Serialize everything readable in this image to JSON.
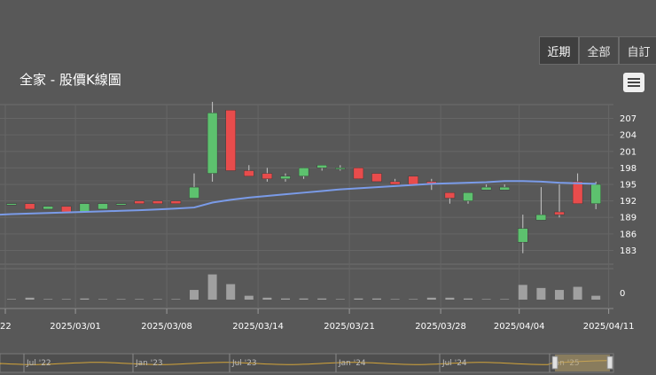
{
  "range_buttons": [
    {
      "label": "近期",
      "active": true
    },
    {
      "label": "全部",
      "active": false
    },
    {
      "label": "自訂",
      "active": false
    }
  ],
  "chart_title": "全家 - 股價K線圖",
  "menu_icon": "hamburger-menu-icon",
  "colors": {
    "up": "#e84c4c",
    "down": "#5dc16e",
    "ma": "#7a9be8",
    "volume": "#a0a0a0",
    "navigator": "#d4a53a"
  },
  "chart_data": {
    "type": "candlestick",
    "title": "全家 - 股價K線圖",
    "y_ticks": [
      207,
      204,
      201,
      198,
      195,
      192,
      189,
      186,
      183
    ],
    "volume_tick": "0",
    "x_ticks": [
      "22",
      "2025/03/01",
      "2025/03/08",
      "2025/03/14",
      "2025/03/21",
      "2025/03/28",
      "2025/04/04",
      "2025/04/11"
    ],
    "candles": [
      {
        "date": "2025/02/24",
        "o": 191.5,
        "h": 191.5,
        "l": 191.5,
        "c": 191.5
      },
      {
        "date": "2025/02/25",
        "o": 191.5,
        "h": 191.5,
        "l": 190.5,
        "c": 190.5
      },
      {
        "date": "2025/02/26",
        "o": 190.5,
        "h": 191.0,
        "l": 190.5,
        "c": 191.0
      },
      {
        "date": "2025/02/27",
        "o": 191.0,
        "h": 191.0,
        "l": 190.0,
        "c": 190.0
      },
      {
        "date": "2025/03/03",
        "o": 190.0,
        "h": 191.5,
        "l": 190.0,
        "c": 191.5
      },
      {
        "date": "2025/03/04",
        "o": 190.5,
        "h": 191.5,
        "l": 190.5,
        "c": 191.5
      },
      {
        "date": "2025/03/05",
        "o": 191.5,
        "h": 191.5,
        "l": 191.5,
        "c": 191.5
      },
      {
        "date": "2025/03/06",
        "o": 192.0,
        "h": 192.0,
        "l": 191.5,
        "c": 191.5
      },
      {
        "date": "2025/03/07",
        "o": 192.0,
        "h": 192.0,
        "l": 191.5,
        "c": 191.5
      },
      {
        "date": "2025/03/10",
        "o": 192.0,
        "h": 192.0,
        "l": 191.5,
        "c": 191.5
      },
      {
        "date": "2025/03/11",
        "o": 192.5,
        "h": 197.0,
        "l": 192.5,
        "c": 194.5
      },
      {
        "date": "2025/03/12",
        "o": 197.0,
        "h": 210.0,
        "l": 195.5,
        "c": 208.0
      },
      {
        "date": "2025/03/13",
        "o": 208.5,
        "h": 208.5,
        "l": 197.5,
        "c": 197.5
      },
      {
        "date": "2025/03/14",
        "o": 197.5,
        "h": 198.5,
        "l": 196.5,
        "c": 196.5
      },
      {
        "date": "2025/03/17",
        "o": 197.0,
        "h": 198.0,
        "l": 195.5,
        "c": 196.0
      },
      {
        "date": "2025/03/18",
        "o": 196.0,
        "h": 197.0,
        "l": 195.5,
        "c": 196.5
      },
      {
        "date": "2025/03/19",
        "o": 196.5,
        "h": 198.0,
        "l": 196.0,
        "c": 198.0
      },
      {
        "date": "2025/03/20",
        "o": 198.0,
        "h": 198.5,
        "l": 197.5,
        "c": 198.5
      },
      {
        "date": "2025/03/21",
        "o": 198.0,
        "h": 198.5,
        "l": 197.5,
        "c": 198.0
      },
      {
        "date": "2025/03/24",
        "o": 198.0,
        "h": 198.0,
        "l": 196.0,
        "c": 196.0
      },
      {
        "date": "2025/03/25",
        "o": 197.0,
        "h": 197.0,
        "l": 195.5,
        "c": 195.5
      },
      {
        "date": "2025/03/26",
        "o": 195.5,
        "h": 196.0,
        "l": 195.0,
        "c": 195.0
      },
      {
        "date": "2025/03/27",
        "o": 196.5,
        "h": 196.5,
        "l": 195.0,
        "c": 195.0
      },
      {
        "date": "2025/03/28",
        "o": 195.5,
        "h": 196.0,
        "l": 194.0,
        "c": 195.0
      },
      {
        "date": "2025/03/31",
        "o": 193.5,
        "h": 193.5,
        "l": 191.5,
        "c": 192.5
      },
      {
        "date": "2025/04/01",
        "o": 192.0,
        "h": 193.5,
        "l": 191.5,
        "c": 193.5
      },
      {
        "date": "2025/04/02",
        "o": 194.0,
        "h": 195.0,
        "l": 194.0,
        "c": 194.5
      },
      {
        "date": "2025/04/03",
        "o": 194.0,
        "h": 195.0,
        "l": 194.0,
        "c": 194.5
      },
      {
        "date": "2025/04/07",
        "o": 184.5,
        "h": 189.5,
        "l": 182.5,
        "c": 187.0
      },
      {
        "date": "2025/04/08",
        "o": 188.5,
        "h": 194.5,
        "l": 188.5,
        "c": 189.5
      },
      {
        "date": "2025/04/09",
        "o": 190.0,
        "h": 195.0,
        "l": 189.0,
        "c": 189.5
      },
      {
        "date": "2025/04/10",
        "o": 195.5,
        "h": 197.0,
        "l": 191.5,
        "c": 191.5
      },
      {
        "date": "2025/04/11",
        "o": 191.5,
        "h": 195.5,
        "l": 190.5,
        "c": 195.0
      }
    ],
    "volume": [
      0,
      0.5,
      0,
      0,
      0.3,
      0,
      0,
      0,
      0,
      0,
      2.5,
      6.5,
      4,
      1,
      0.5,
      0.3,
      0.3,
      0.3,
      0,
      0.3,
      0.3,
      0,
      0,
      0.5,
      0.5,
      0.3,
      0,
      0,
      3.8,
      3,
      2.5,
      3.3,
      1
    ],
    "volume_max": 8,
    "ma": [
      189.6,
      189.7,
      189.8,
      189.9,
      190.0,
      190.1,
      190.2,
      190.3,
      190.45,
      190.6,
      190.8,
      191.7,
      192.2,
      192.6,
      192.9,
      193.2,
      193.5,
      193.8,
      194.1,
      194.3,
      194.5,
      194.7,
      194.9,
      195.1,
      195.2,
      195.3,
      195.4,
      195.6,
      195.6,
      195.5,
      195.3,
      195.2,
      195.1
    ],
    "y_range": [
      180.5,
      209.5
    ],
    "navigator_labels": [
      "Jul '22",
      "Jan '23",
      "Jul '23",
      "Jan '24",
      "Jul '24",
      "Jan '25"
    ]
  }
}
